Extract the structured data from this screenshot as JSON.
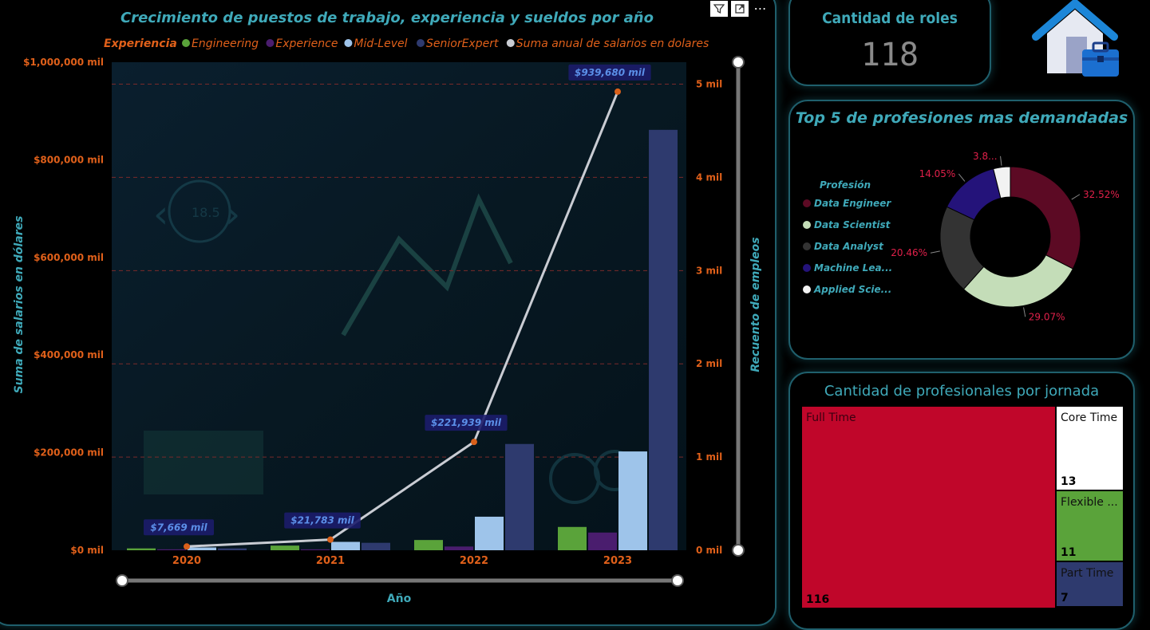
{
  "chart_data": [
    {
      "type": "bar",
      "title": "Crecimiento de puestos de trabajo, experiencia y sueldos por año",
      "legend_title": "Experiencia",
      "legend_position": "top",
      "xlabel": "Año",
      "ylabel_left": "Suma de salarios en dólares",
      "ylabel_right": "Recuento de empleos",
      "categories": [
        "2020",
        "2021",
        "2022",
        "2023"
      ],
      "yticks_left": [
        "$0 mil",
        "$200,000 mil",
        "$400,000 mil",
        "$600,000 mil",
        "$800,000 mil",
        "$1,000,000 mil"
      ],
      "ylim_left": [
        0,
        1000000
      ],
      "yticks_right": [
        "0 mil",
        "1 mil",
        "2 mil",
        "3 mil",
        "4 mil",
        "5 mil"
      ],
      "ylim_right": [
        0,
        5
      ],
      "series": [
        {
          "name": "Engineering",
          "color": "#5aa33a",
          "values": [
            0.02,
            0.05,
            0.11,
            0.25
          ]
        },
        {
          "name": "Experience",
          "color": "#4a1d6e",
          "values": [
            0.01,
            0.01,
            0.04,
            0.19
          ]
        },
        {
          "name": "Mid-Level",
          "color": "#9ec4ea",
          "values": [
            0.03,
            0.09,
            0.36,
            1.06
          ]
        },
        {
          "name": "SeniorExpert",
          "color": "#2e3a6e",
          "values": [
            0.02,
            0.08,
            1.14,
            4.51
          ]
        }
      ],
      "line_series": {
        "name": "Suma anual de salarios en dolares",
        "color": "#c9ccd3",
        "values": [
          7669,
          21783,
          221939,
          939680
        ],
        "labels": [
          "$7,669 mil",
          "$21,783 mil",
          "$221,939 mil",
          "$939,680 mil"
        ]
      },
      "grid": true
    },
    {
      "type": "pie",
      "title": "Top 5 de profesiones mas demandadas",
      "legend_title": "Profesión",
      "legend_position": "left",
      "donut": true,
      "categories": [
        "Data Engineer",
        "Data Scientist",
        "Data Analyst",
        "Machine Lea...",
        "Applied Scie..."
      ],
      "values": [
        32.52,
        29.07,
        20.46,
        14.05,
        3.9
      ],
      "labels": [
        "32.52%",
        "29.07%",
        "20.46%",
        "14.05%",
        "3.8..."
      ],
      "colors": [
        "#5c0a24",
        "#c4ddb8",
        "#333333",
        "#24137a",
        "#f2f2f2"
      ]
    },
    {
      "type": "treemap",
      "title": "Cantidad de profesionales por jornada",
      "categories": [
        "Full Time",
        "Core Time",
        "Flexible ...",
        "Part Time"
      ],
      "values": [
        116,
        13,
        11,
        7
      ],
      "colors": [
        "#c0062a",
        "#ffffff",
        "#5aa33a",
        "#2e3a6e"
      ]
    }
  ],
  "roles": {
    "title": "Cantidad de roles",
    "value": "118"
  },
  "icons": {
    "toolbar": [
      "filter-icon",
      "focus-mode-icon",
      "more-options-icon"
    ],
    "more_glyph": "⋯",
    "home": "home-briefcase-icon"
  }
}
